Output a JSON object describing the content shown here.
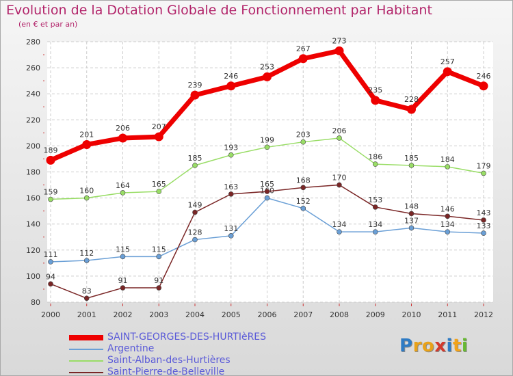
{
  "title": "Evolution de la Dotation Globale de Fonctionnement par Habitant",
  "subtitle": "(en € et par an)",
  "logo": {
    "letters": [
      "P",
      "r",
      "o",
      "x",
      "i",
      "t",
      "i"
    ],
    "colors": [
      "#2e7bc4",
      "#e8a21a",
      "#e8a21a",
      "#d33a2c",
      "#2e7bc4",
      "#f2a31a",
      "#67b832"
    ]
  },
  "chart_data": {
    "type": "line",
    "x": [
      "2000",
      "2001",
      "2002",
      "2003",
      "2004",
      "2005",
      "2006",
      "2007",
      "2008",
      "2009",
      "2010",
      "2011",
      "2012"
    ],
    "ylim": [
      80,
      280
    ],
    "yticks": [
      80,
      100,
      120,
      140,
      160,
      180,
      200,
      220,
      240,
      260,
      280
    ],
    "grid": true,
    "legend_position": "bottom",
    "series": [
      {
        "name": "SAINT-GEORGES-DES-HURTIèRES",
        "values": [
          189,
          201,
          206,
          207,
          239,
          246,
          253,
          267,
          273,
          235,
          228,
          257,
          246
        ],
        "color": "#ee0000",
        "legend_text_color": "#5a5ad8",
        "emphasis": true
      },
      {
        "name": "Argentine",
        "values": [
          111,
          112,
          115,
          115,
          128,
          131,
          160,
          152,
          134,
          134,
          137,
          134,
          133
        ],
        "color": "#6a9fd6",
        "legend_text_color": "#5a5ad8",
        "emphasis": false
      },
      {
        "name": "Saint-Alban-des-Hurtières",
        "values": [
          159,
          160,
          164,
          165,
          185,
          193,
          199,
          203,
          206,
          186,
          185,
          184,
          179
        ],
        "color": "#99dd66",
        "legend_text_color": "#5a5ad8",
        "emphasis": false
      },
      {
        "name": "Saint-Pierre-de-Belleville",
        "values": [
          94,
          83,
          91,
          91,
          149,
          163,
          165,
          168,
          170,
          153,
          148,
          146,
          143
        ],
        "color": "#7a2626",
        "legend_text_color": "#5a5ad8",
        "emphasis": false
      }
    ]
  }
}
